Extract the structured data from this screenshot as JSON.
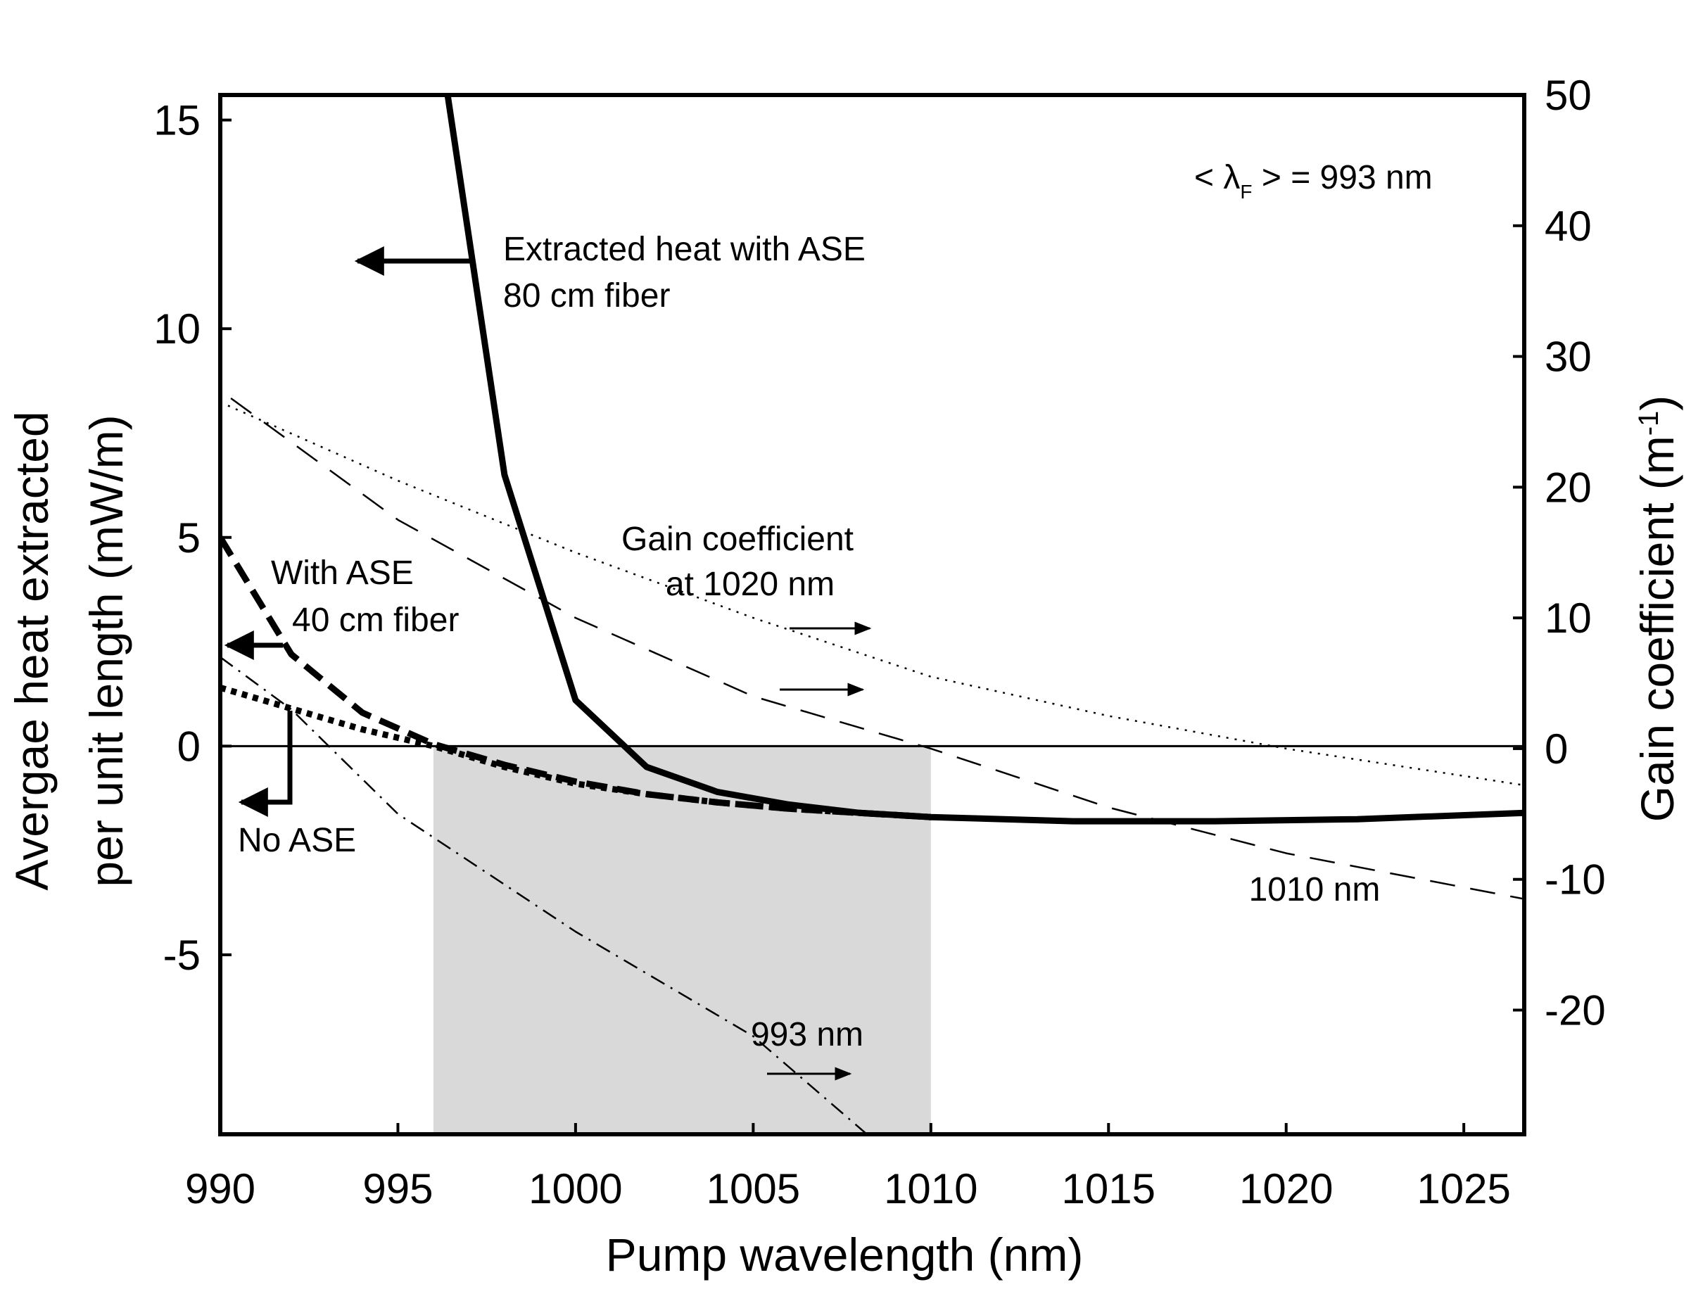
{
  "chart_data": {
    "type": "line",
    "xlabel": "Pump wavelength (nm)",
    "ylabel_left": "Avergae heat extracted per unit length (mW/m)",
    "ylabel_left_lines": [
      "Avergae heat extracted",
      "per unit length (mW/m)"
    ],
    "ylabel_right": "Gain coefficient (m",
    "ylabel_right_sup": "-1",
    "ylabel_right_close": ")",
    "xlim": [
      990,
      1026.7
    ],
    "ylim_left": [
      -9.3,
      15.6
    ],
    "ylim_right": [
      -29.5,
      50
    ],
    "xticks": [
      990,
      995,
      1000,
      1005,
      1010,
      1015,
      1020,
      1025
    ],
    "yticks_left": [
      -5,
      0,
      5,
      10,
      15
    ],
    "yticks_right": [
      -20,
      -10,
      0,
      10,
      20,
      30,
      40,
      50
    ],
    "grid": false,
    "shaded_region": [
      996,
      1010
    ],
    "series": [
      {
        "axis": "left",
        "style": "solid-thick",
        "x": [
          996.4,
          998,
          1000,
          1002,
          1004,
          1006,
          1008,
          1010,
          1014,
          1018,
          1022,
          1026.7
        ],
        "y": [
          15.6,
          6.5,
          1.1,
          -0.5,
          -1.1,
          -1.4,
          -1.6,
          -1.7,
          -1.8,
          -1.8,
          -1.75,
          -1.6
        ]
      },
      {
        "axis": "left",
        "style": "dashed-thick",
        "x": [
          990,
          992,
          994,
          996,
          998,
          1000,
          1002,
          1004,
          1006,
          1008,
          1010
        ],
        "y": [
          5.0,
          2.2,
          0.8,
          0.05,
          -0.45,
          -0.85,
          -1.15,
          -1.35,
          -1.5,
          -1.6,
          -1.7
        ]
      },
      {
        "axis": "left",
        "style": "dotted-thick",
        "x": [
          990,
          992,
          994,
          996,
          998,
          1000,
          1002,
          1004,
          1006,
          1008,
          1010
        ],
        "y": [
          1.4,
          0.9,
          0.4,
          0.0,
          -0.5,
          -0.9,
          -1.15,
          -1.35,
          -1.5,
          -1.6,
          -1.7
        ]
      },
      {
        "axis": "right",
        "style": "dotted-thin",
        "x": [
          990,
          995,
          1000,
          1005,
          1010,
          1015,
          1020,
          1026.7
        ],
        "y": [
          26.5,
          20.5,
          15.0,
          10.0,
          5.5,
          2.5,
          0.0,
          -2.8
        ]
      },
      {
        "axis": "right",
        "style": "dashed-thin",
        "x": [
          990.3,
          995,
          1000,
          1005,
          1010,
          1015,
          1020,
          1026.7
        ],
        "y": [
          26.8,
          17.5,
          10.0,
          4.0,
          0.0,
          -4.5,
          -8.0,
          -11.5
        ]
      },
      {
        "axis": "right",
        "style": "dashdot-thin",
        "x": [
          990,
          992,
          995,
          1000,
          1005,
          1008.2
        ],
        "y": [
          7.0,
          3.0,
          -5.0,
          -14.0,
          -22.0,
          -29.5
        ]
      }
    ],
    "annotations": [
      {
        "label": "Extracted heat with ASE",
        "label2": "80 cm fiber"
      },
      {
        "label": "With ASE",
        "label2": "40 cm fiber"
      },
      {
        "label": "No ASE"
      },
      {
        "label": "Gain coefficient",
        "label2": "at 1020 nm"
      },
      {
        "label": "1010 nm"
      },
      {
        "label": "993 nm"
      },
      {
        "label_prefix": "< λ",
        "label_sub": "F",
        "label_suffix": " > = 993 nm"
      }
    ]
  }
}
